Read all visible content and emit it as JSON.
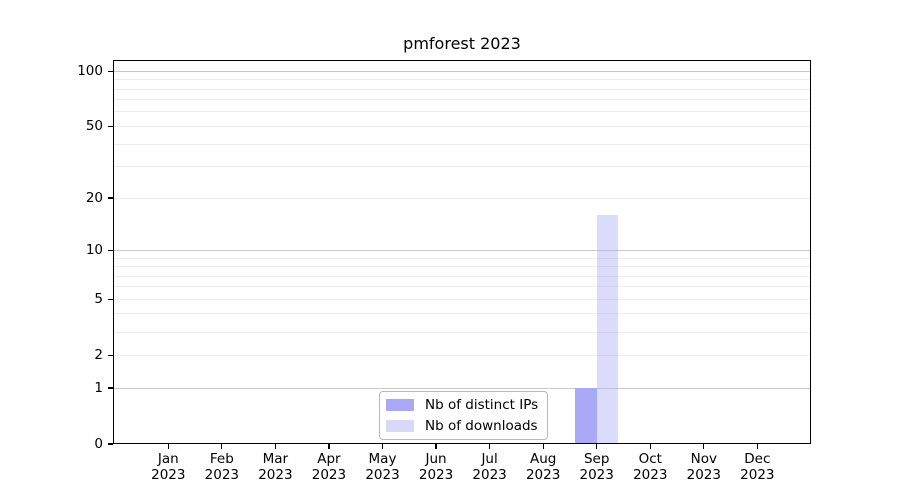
{
  "chart_data": {
    "type": "bar",
    "title": "pmforest 2023",
    "categories": [
      "Jan",
      "Feb",
      "Mar",
      "Apr",
      "May",
      "Jun",
      "Jul",
      "Aug",
      "Sep",
      "Oct",
      "Nov",
      "Dec"
    ],
    "category_year": "2023",
    "series": [
      {
        "name": "Nb of distinct IPs",
        "color": "#a9a9f5",
        "values": [
          0,
          0,
          0,
          0,
          0,
          0,
          0,
          0,
          1,
          0,
          0,
          0
        ]
      },
      {
        "name": "Nb of downloads",
        "color": "#d9d9f7",
        "color_rgba": "rgba(169,169,245,0.42)",
        "values": [
          0,
          0,
          0,
          0,
          0,
          0,
          0,
          0,
          16,
          0,
          0,
          0
        ]
      }
    ],
    "yticks": [
      "0",
      "1",
      "2",
      "5",
      "10",
      "20",
      "50",
      "100"
    ],
    "ytick_values": [
      0,
      1,
      2,
      5,
      10,
      20,
      50,
      100
    ],
    "ylim": [
      0,
      115
    ],
    "scale": "log10(1+y)",
    "grid": "both",
    "legend": {
      "position": "bottom-center",
      "entries": [
        "Nb of distinct IPs",
        "Nb of downloads"
      ]
    }
  },
  "colors": {
    "grid_major": "#c9c9c9",
    "grid_minor": "#ededed",
    "axis": "#000000",
    "background": "#ffffff"
  }
}
